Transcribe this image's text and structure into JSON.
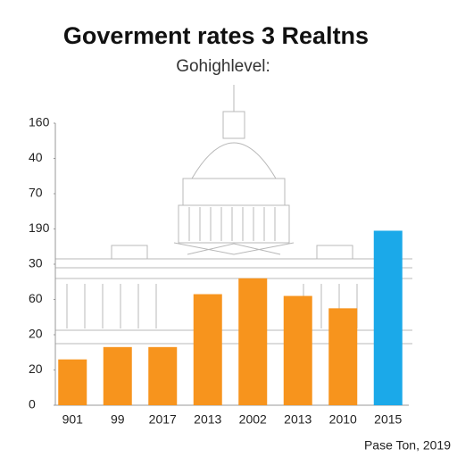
{
  "chart_data": {
    "type": "bar",
    "title": "Goverment rates 3 Realtns",
    "subtitle": "Gohighlevel:",
    "source": "Pase Ton, 2019",
    "categories": [
      "901",
      "99",
      "2017",
      "2013",
      "2002",
      "2013",
      "2010",
      "2015"
    ],
    "values": [
      1.3,
      1.65,
      1.65,
      3.15,
      3.6,
      3.1,
      2.75,
      4.95
    ],
    "colors": [
      "#f7941d",
      "#f7941d",
      "#f7941d",
      "#f7941d",
      "#f7941d",
      "#f7941d",
      "#f7941d",
      "#1ba9e9"
    ],
    "ylim": [
      0,
      8
    ],
    "yticks": [
      {
        "value": 0,
        "label": "0"
      },
      {
        "value": 1,
        "label": "20"
      },
      {
        "value": 2,
        "label": "20"
      },
      {
        "value": 3,
        "label": "60"
      },
      {
        "value": 4,
        "label": "30"
      },
      {
        "value": 5,
        "label": "190"
      },
      {
        "value": 6,
        "label": "70"
      },
      {
        "value": 7,
        "label": "40"
      },
      {
        "value": 8,
        "label": "160"
      }
    ]
  }
}
